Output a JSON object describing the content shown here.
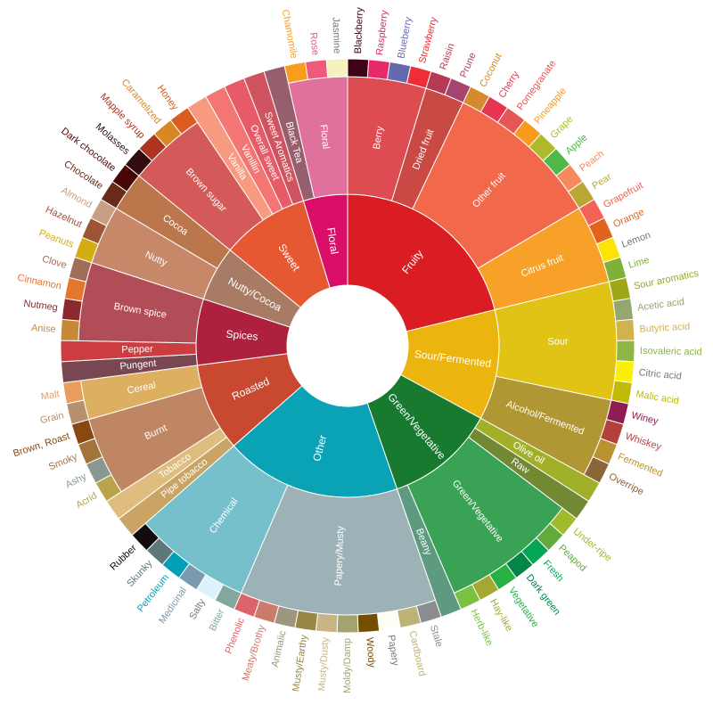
{
  "chart_data": {
    "type": "sunburst",
    "children": [
      {
        "name": "Fruity",
        "color": "#da1d23",
        "children": [
          {
            "name": "Berry",
            "color": "#dd4c51",
            "children": [
              {
                "name": "Blackberry",
                "color": "#3e0317",
                "value": 1
              },
              {
                "name": "Raspberry",
                "color": "#e62969",
                "value": 1
              },
              {
                "name": "Blueberry",
                "color": "#6569b0",
                "value": 1
              },
              {
                "name": "Strawberry",
                "color": "#ef2d36",
                "value": 1
              }
            ]
          },
          {
            "name": "Dried fruit",
            "color": "#c94a44",
            "children": [
              {
                "name": "Raisin",
                "color": "#b53b54",
                "value": 1
              },
              {
                "name": "Prune",
                "color": "#a5446f",
                "value": 1
              }
            ]
          },
          {
            "name": "Other fruit",
            "color": "#f2684b",
            "children": [
              {
                "name": "Coconut",
                "color": "#d68a30",
                "value": 1
              },
              {
                "name": "Cherry",
                "color": "#e73451",
                "value": 1
              },
              {
                "name": "Pomegranate",
                "color": "#e65656",
                "value": 1
              },
              {
                "name": "Pineapple",
                "color": "#f89a1c",
                "value": 1
              },
              {
                "name": "Grape",
                "color": "#aeb92c",
                "value": 1
              },
              {
                "name": "Apple",
                "color": "#4eb849",
                "value": 1
              },
              {
                "name": "Peach",
                "color": "#f68a5c",
                "value": 1
              },
              {
                "name": "Pear",
                "color": "#baa635",
                "value": 1
              }
            ]
          },
          {
            "name": "Citrus fruit",
            "color": "#f7a128",
            "children": [
              {
                "name": "Grapefruit",
                "color": "#f26355",
                "value": 1
              },
              {
                "name": "Orange",
                "color": "#e2631e",
                "value": 1
              },
              {
                "name": "Lemon",
                "color": "#fde404",
                "value": 1
              },
              {
                "name": "Lime",
                "color": "#7eb138",
                "value": 1
              }
            ]
          }
        ]
      },
      {
        "name": "Sour/Fermented",
        "color": "#ebb40f",
        "children": [
          {
            "name": "Sour",
            "color": "#e1c315",
            "children": [
              {
                "name": "Sour aromatics",
                "color": "#9ea718",
                "value": 1
              },
              {
                "name": "Acetic acid",
                "color": "#94a76f",
                "value": 1
              },
              {
                "name": "Butyric acid",
                "color": "#d0b24f",
                "value": 1
              },
              {
                "name": "Isovaleric acid",
                "color": "#8eb646",
                "value": 1
              },
              {
                "name": "Citric acid",
                "color": "#faef07",
                "value": 1
              },
              {
                "name": "Malic acid",
                "color": "#c1ba07",
                "value": 1
              }
            ]
          },
          {
            "name": "Alcohol/Fermented",
            "color": "#b09733",
            "children": [
              {
                "name": "Winey",
                "color": "#8f1c53",
                "value": 1
              },
              {
                "name": "Whiskey",
                "color": "#b34039",
                "value": 1
              },
              {
                "name": "Fermented",
                "color": "#ba9232",
                "value": 1
              },
              {
                "name": "Overripe",
                "color": "#8b6439",
                "value": 1
              }
            ]
          }
        ]
      },
      {
        "name": "Green/Vegetative",
        "color": "#187a2f",
        "children": [
          {
            "name": "Olive oil",
            "color": "#a2b029",
            "value": 1
          },
          {
            "name": "Raw",
            "color": "#718933",
            "value": 1
          },
          {
            "name": "Green/Vegetative",
            "color": "#3aa255",
            "children": [
              {
                "name": "Under-ripe",
                "color": "#a2bb2b",
                "value": 1
              },
              {
                "name": "Peapod",
                "color": "#62aa3c",
                "value": 1
              },
              {
                "name": "Fresh",
                "color": "#03a653",
                "value": 1
              },
              {
                "name": "Dark green",
                "color": "#038549",
                "value": 1
              },
              {
                "name": "Vegetative",
                "color": "#28b044",
                "value": 1
              },
              {
                "name": "Hay-like",
                "color": "#a3a830",
                "value": 1
              },
              {
                "name": "Herb-like",
                "color": "#7ac141",
                "value": 1
              }
            ]
          },
          {
            "name": "Beany",
            "color": "#5e9a80",
            "value": 1
          }
        ]
      },
      {
        "name": "Other",
        "color": "#0aa3b5",
        "children": [
          {
            "name": "Papery/Musty",
            "color": "#9db2b7",
            "children": [
              {
                "name": "Stale",
                "color": "#8b8c90",
                "value": 1
              },
              {
                "name": "Cardboard",
                "color": "#beb276",
                "value": 1
              },
              {
                "name": "Papery",
                "color": "#fefef4",
                "value": 1
              },
              {
                "name": "Woody",
                "color": "#744e03",
                "value": 1
              },
              {
                "name": "Moldy/Damp",
                "color": "#a3a36f",
                "value": 1
              },
              {
                "name": "Musty/Dusty",
                "color": "#c9b583",
                "value": 1
              },
              {
                "name": "Musty/Earthy",
                "color": "#978847",
                "value": 1
              },
              {
                "name": "Animalic",
                "color": "#9d977f",
                "value": 1
              },
              {
                "name": "Meaty/Brothy",
                "color": "#cc7b6a",
                "value": 1
              },
              {
                "name": "Phenolic",
                "color": "#db646a",
                "value": 1
              }
            ]
          },
          {
            "name": "Chemical",
            "color": "#76c0cb",
            "children": [
              {
                "name": "Bitter",
                "color": "#80a89d",
                "value": 1
              },
              {
                "name": "Salty",
                "color": "#def2fd",
                "value": 1
              },
              {
                "name": "Medicinal",
                "color": "#7a9bae",
                "value": 1
              },
              {
                "name": "Petroleum",
                "color": "#039fb8",
                "value": 1
              },
              {
                "name": "Skunky",
                "color": "#5e777b",
                "value": 1
              },
              {
                "name": "Rubber",
                "color": "#120c0c",
                "value": 1
              }
            ]
          }
        ]
      },
      {
        "name": "Roasted",
        "color": "#c94930",
        "children": [
          {
            "name": "Pipe tobacco",
            "color": "#caa465",
            "value": 1
          },
          {
            "name": "Tobacco",
            "color": "#dfbd7e",
            "value": 1
          },
          {
            "name": "Burnt",
            "color": "#be8663",
            "children": [
              {
                "name": "Acrid",
                "color": "#b9a449",
                "value": 1
              },
              {
                "name": "Ashy",
                "color": "#899893",
                "value": 1
              },
              {
                "name": "Smoky",
                "color": "#a1743b",
                "value": 1
              },
              {
                "name": "Brown, Roast",
                "color": "#894810",
                "value": 1
              }
            ]
          },
          {
            "name": "Cereal",
            "color": "#ddaf61",
            "children": [
              {
                "name": "Grain",
                "color": "#b7906f",
                "value": 1
              },
              {
                "name": "Malt",
                "color": "#eb9d5f",
                "value": 1
              }
            ]
          }
        ]
      },
      {
        "name": "Spices",
        "color": "#ad213e",
        "children": [
          {
            "name": "Pungent",
            "color": "#794752",
            "value": 1
          },
          {
            "name": "Pepper",
            "color": "#cc3d41",
            "value": 1
          },
          {
            "name": "Brown spice",
            "color": "#b14d57",
            "children": [
              {
                "name": "Anise",
                "color": "#c78936",
                "value": 1
              },
              {
                "name": "Nutmeg",
                "color": "#8c292c",
                "value": 1
              },
              {
                "name": "Cinnamon",
                "color": "#e5762e",
                "value": 1
              },
              {
                "name": "Clove",
                "color": "#a16c5a",
                "value": 1
              }
            ]
          }
        ]
      },
      {
        "name": "Nutty/Cocoa",
        "color": "#a87b64",
        "children": [
          {
            "name": "Nutty",
            "color": "#c78869",
            "children": [
              {
                "name": "Peanuts",
                "color": "#d4ad12",
                "value": 1
              },
              {
                "name": "Hazelnut",
                "color": "#9d5433",
                "value": 1
              },
              {
                "name": "Almond",
                "color": "#c89f83",
                "value": 1
              }
            ]
          },
          {
            "name": "Cocoa",
            "color": "#bb764c",
            "children": [
              {
                "name": "Chocolate",
                "color": "#692a19",
                "value": 1
              },
              {
                "name": "Dark chocolate",
                "color": "#470604",
                "value": 1
              }
            ]
          }
        ]
      },
      {
        "name": "Sweet",
        "color": "#e65832",
        "children": [
          {
            "name": "Brown sugar",
            "color": "#d45a59",
            "children": [
              {
                "name": "Molasses",
                "color": "#310d0f",
                "value": 1
              },
              {
                "name": "Mapple syrup",
                "color": "#ae341f",
                "value": 1
              },
              {
                "name": "Caramelized",
                "color": "#d78823",
                "value": 1
              },
              {
                "name": "Honey",
                "color": "#da5c1f",
                "value": 1
              }
            ]
          },
          {
            "name": "Vanilla",
            "color": "#f89a80",
            "value": 1
          },
          {
            "name": "Vanillin",
            "color": "#f37674",
            "value": 1
          },
          {
            "name": "Overall sweet",
            "color": "#e75b68",
            "value": 1
          },
          {
            "name": "Sweet Aromatics",
            "color": "#d0545f",
            "value": 1
          }
        ]
      },
      {
        "name": "Floral",
        "color": "#da0d68",
        "children": [
          {
            "name": "Black Tea",
            "color": "#975e6d",
            "value": 1
          },
          {
            "name": "Floral",
            "color": "#e0719c",
            "children": [
              {
                "name": "Chamomile",
                "color": "#f99e1c",
                "value": 1
              },
              {
                "name": "Rose",
                "color": "#ef5a78",
                "value": 1
              },
              {
                "name": "Jasmine",
                "color": "#f7f1bd",
                "value": 1
              }
            ]
          }
        ]
      }
    ]
  }
}
